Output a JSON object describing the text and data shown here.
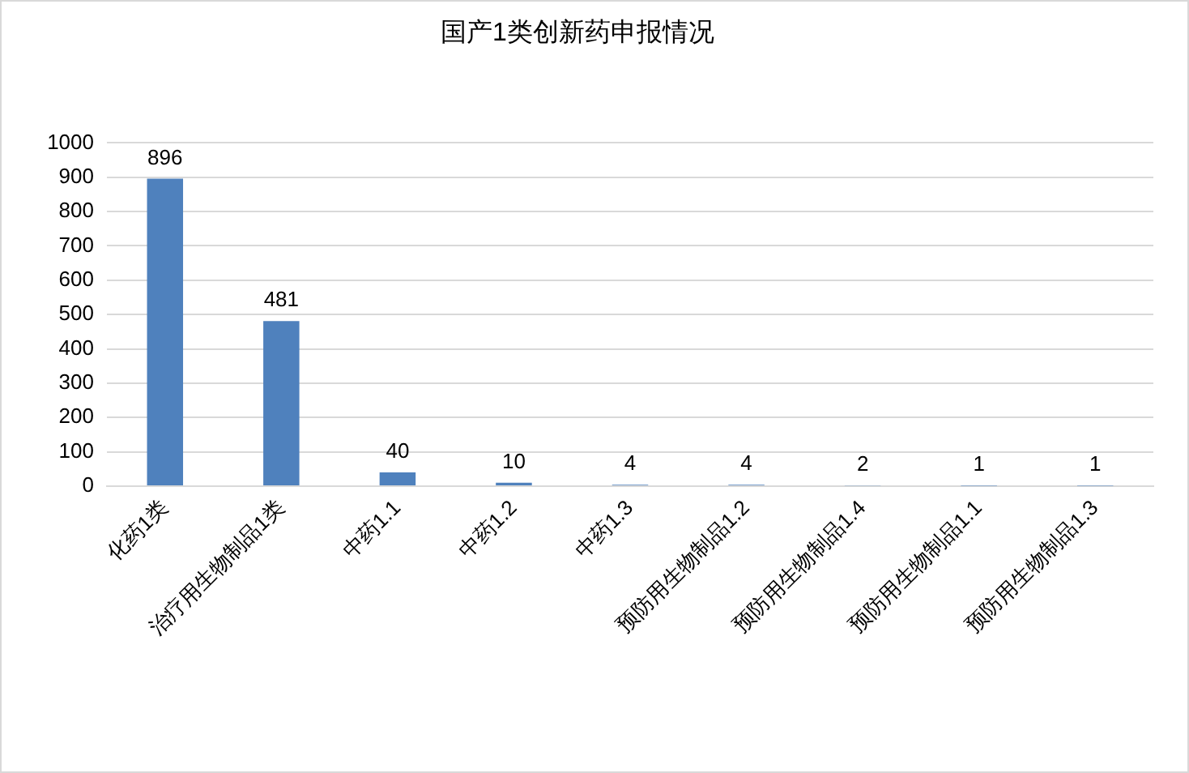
{
  "chart_data": {
    "type": "bar",
    "title": "国产1类创新药申报情况",
    "categories": [
      "化药1类",
      "治疗用生物制品1类",
      "中药1.1",
      "中药1.2",
      "中药1.3",
      "预防用生物制品1.2",
      "预防用生物制品1.4",
      "预防用生物制品1.1",
      "预防用生物制品1.3"
    ],
    "values": [
      896,
      481,
      40,
      10,
      4,
      4,
      2,
      1,
      1
    ],
    "color": "#4f81bd",
    "ylim": [
      0,
      1000
    ],
    "yticks": [
      0,
      100,
      200,
      300,
      400,
      500,
      600,
      700,
      800,
      900,
      1000
    ],
    "grid": "y",
    "data_labels": true
  }
}
